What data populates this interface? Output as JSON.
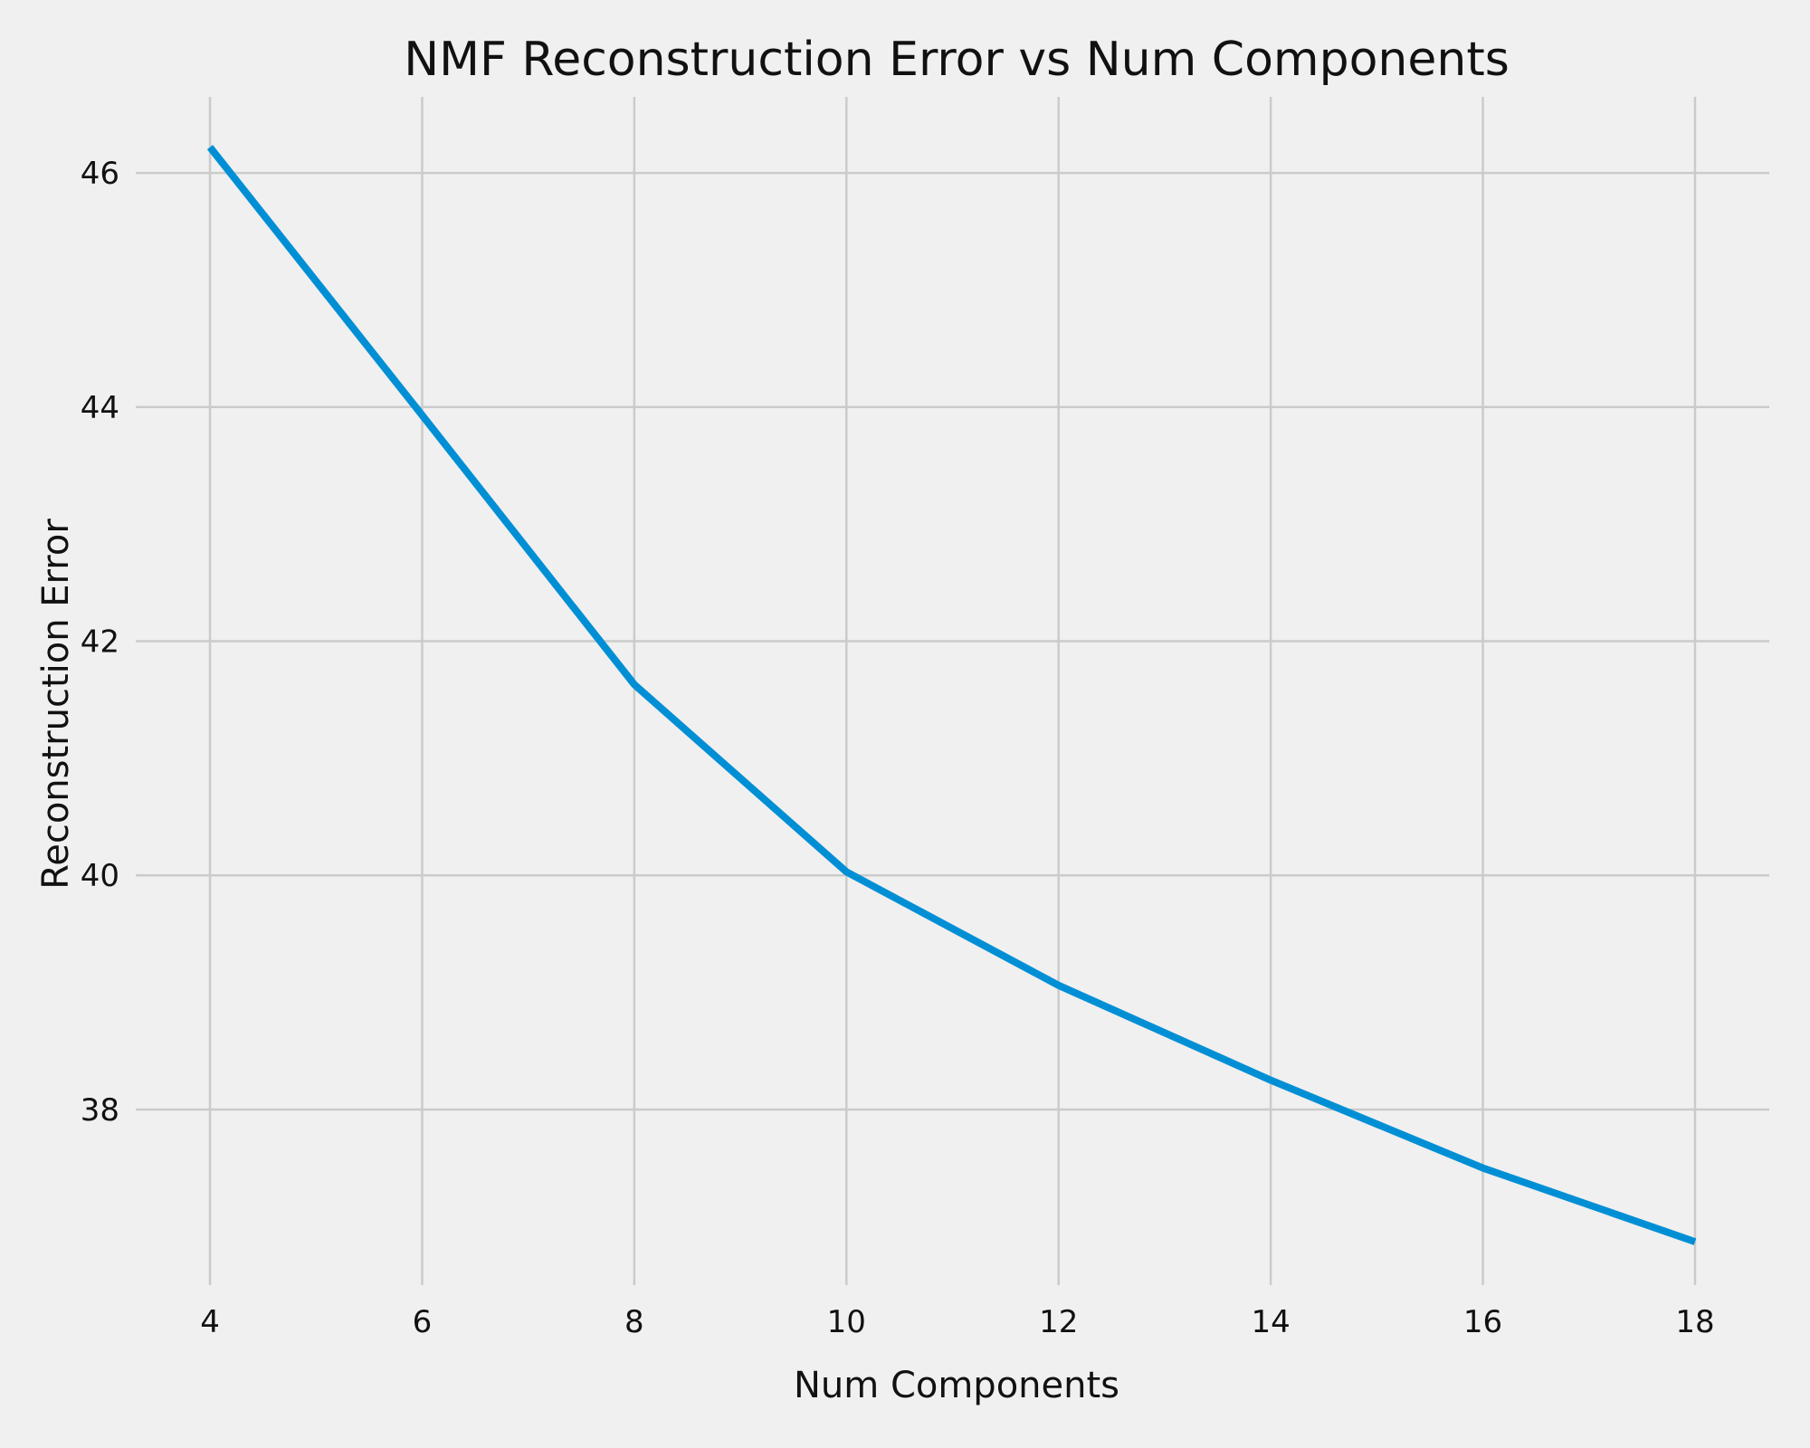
{
  "chart_data": {
    "type": "line",
    "title": "NMF Reconstruction Error vs Num Components",
    "xlabel": "Num Components",
    "ylabel": "Reconstruction Error",
    "x": [
      4,
      6,
      8,
      10,
      12,
      14,
      16,
      18
    ],
    "series": [
      {
        "values": [
          46.22,
          43.93,
          41.63,
          40.03,
          39.06,
          38.25,
          37.5,
          36.87
        ],
        "color": "#008fd5"
      }
    ],
    "xticks": [
      "4",
      "6",
      "8",
      "10",
      "12",
      "14",
      "16",
      "18"
    ],
    "yticks": [
      "38",
      "40",
      "42",
      "44",
      "46"
    ],
    "xlim": [
      3.3,
      18.7
    ],
    "ylim": [
      36.5,
      46.65
    ],
    "grid": true,
    "legend": "none",
    "background_color": "#f0f0f0"
  }
}
